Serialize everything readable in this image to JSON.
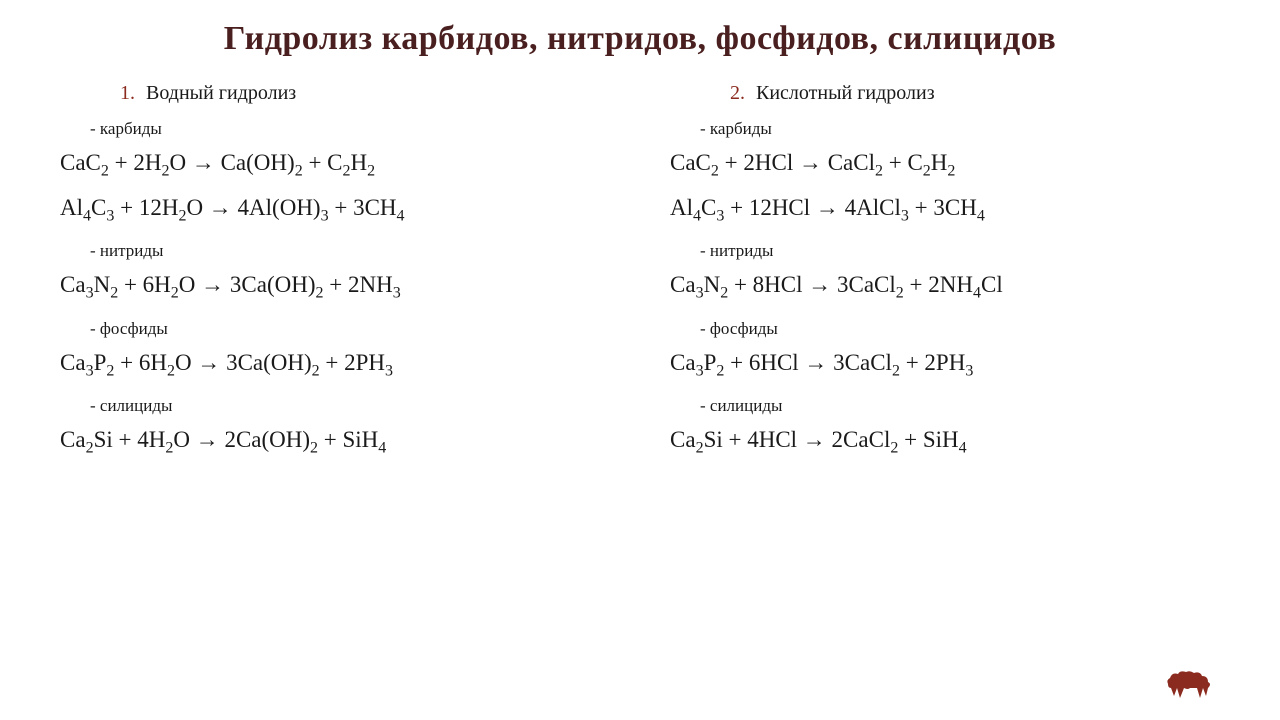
{
  "title": "Гидролиз карбидов, нитридов, фосфидов, силицидов",
  "title_color": "#4a1f1f",
  "title_fontsize": 34,
  "background_color": "#ffffff",
  "text_color": "#1a1a1a",
  "accent_color": "#8b2b1f",
  "logo_color": "#8b2b1f",
  "columns": [
    {
      "number": "1.",
      "heading": "Водный гидролиз",
      "groups": [
        {
          "label": "- карбиды",
          "equations": [
            [
              [
                "CaC",
                "2"
              ],
              [
                " + 2H",
                "2"
              ],
              [
                "O → Ca(OH)",
                "2"
              ],
              [
                " + C",
                "2"
              ],
              [
                "H",
                "2"
              ]
            ],
            [
              [
                "Al",
                "4"
              ],
              [
                "C",
                "3"
              ],
              [
                " + 12H",
                "2"
              ],
              [
                "O → 4Al(OH)",
                "3"
              ],
              [
                " + 3CH",
                "4"
              ]
            ]
          ]
        },
        {
          "label": "- нитриды",
          "equations": [
            [
              [
                "Ca",
                "3"
              ],
              [
                "N",
                "2"
              ],
              [
                " + 6H",
                "2"
              ],
              [
                "O → 3Ca(OH)",
                "2"
              ],
              [
                " + 2NH",
                "3"
              ]
            ]
          ]
        },
        {
          "label": "- фосфиды",
          "equations": [
            [
              [
                "Ca",
                "3"
              ],
              [
                "P",
                "2"
              ],
              [
                " + 6H",
                "2"
              ],
              [
                "O → 3Ca(OH)",
                "2"
              ],
              [
                " + 2PH",
                "3"
              ]
            ]
          ]
        },
        {
          "label": "- силициды",
          "equations": [
            [
              [
                "Ca",
                "2"
              ],
              [
                "Si + 4H",
                "2"
              ],
              [
                "O → 2Ca(OH)",
                "2"
              ],
              [
                " + SiH",
                "4"
              ]
            ]
          ]
        }
      ]
    },
    {
      "number": "2.",
      "heading": "Кислотный гидролиз",
      "groups": [
        {
          "label": "- карбиды",
          "equations": [
            [
              [
                "CaC",
                "2"
              ],
              [
                " + 2HCl → CaCl",
                "2"
              ],
              [
                " + C",
                "2"
              ],
              [
                "H",
                "2"
              ]
            ],
            [
              [
                "Al",
                "4"
              ],
              [
                "C",
                "3"
              ],
              [
                " + 12HCl → 4AlCl",
                "3"
              ],
              [
                " + 3CH",
                "4"
              ]
            ]
          ]
        },
        {
          "label": "- нитриды",
          "equations": [
            [
              [
                "Ca",
                "3"
              ],
              [
                "N",
                "2"
              ],
              [
                " + 8HCl → 3CaCl",
                "2"
              ],
              [
                " + 2NH",
                "4"
              ],
              [
                "Cl",
                ""
              ]
            ]
          ]
        },
        {
          "label": "- фосфиды",
          "equations": [
            [
              [
                "Ca",
                "3"
              ],
              [
                "P",
                "2"
              ],
              [
                " + 6HCl → 3CaCl",
                "2"
              ],
              [
                " + 2PH",
                "3"
              ]
            ]
          ]
        },
        {
          "label": "- силициды",
          "equations": [
            [
              [
                "Ca",
                "2"
              ],
              [
                "Si + 4HCl → 2CaCl",
                "2"
              ],
              [
                " + SiH",
                "4"
              ]
            ]
          ]
        }
      ]
    }
  ]
}
